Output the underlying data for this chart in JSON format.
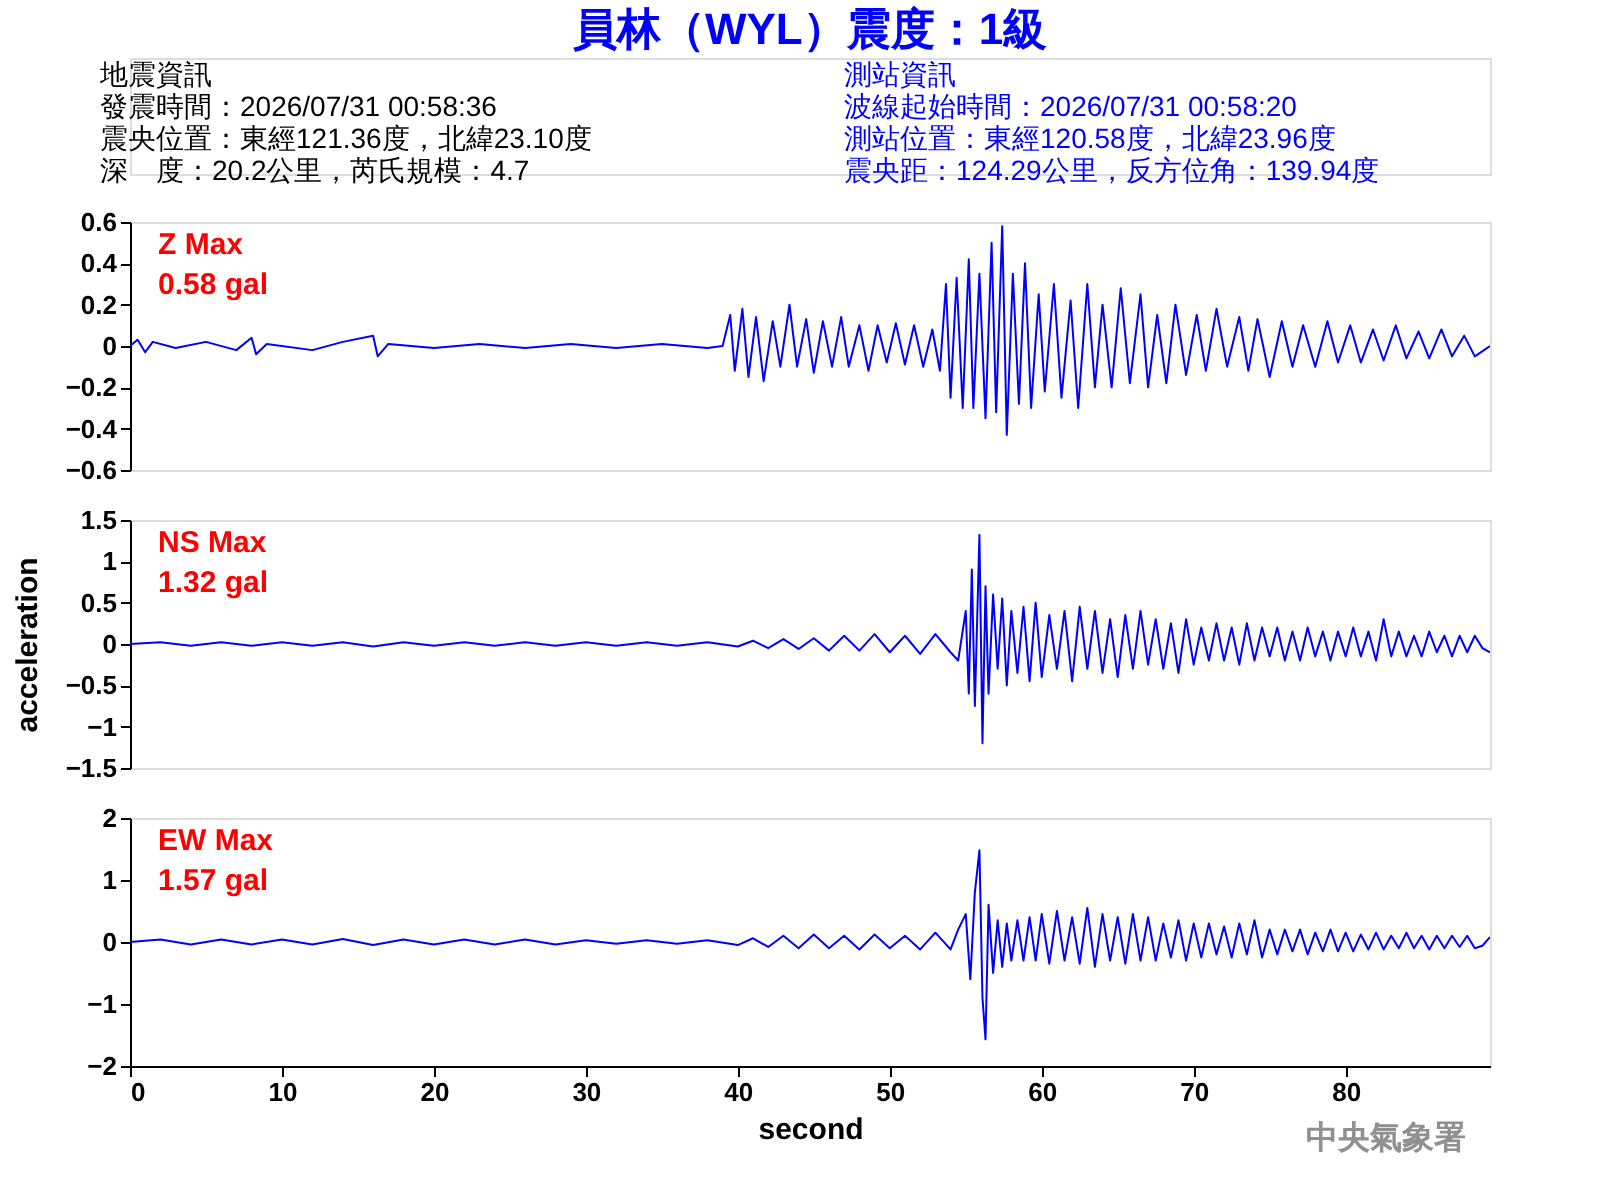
{
  "chart_data": [
    {
      "type": "line",
      "title": "員林（WYL）震度：1級",
      "annotations": [
        "地震資訊",
        "發震時間：2026/07/31 00:58:36",
        "震央位置：東經121.36度，北緯23.10度",
        "深　度：20.2公里，芮氏規模：4.7",
        "測站資訊",
        "波線起始時間：2026/07/31 00:58:20",
        "測站位置：東經120.58度，北緯23.96度",
        "震央距：124.29公里，反方位角：139.94度",
        "Z Max",
        "0.58 gal"
      ],
      "x": [
        0,
        0.5,
        1,
        1.5,
        3,
        5,
        7,
        8,
        8.3,
        9,
        12,
        14,
        16,
        16.3,
        17,
        20,
        23,
        26,
        29,
        32,
        35,
        38,
        39,
        39.5,
        39.8,
        40.3,
        40.7,
        41.2,
        41.7,
        42.3,
        42.8,
        43.4,
        43.9,
        44.5,
        45,
        45.6,
        46.2,
        46.8,
        47.3,
        48,
        48.6,
        49.2,
        49.8,
        50.4,
        51,
        51.6,
        52.2,
        52.8,
        53.3,
        53.7,
        54,
        54.4,
        54.8,
        55.2,
        55.5,
        55.9,
        56.3,
        56.7,
        57,
        57.4,
        57.7,
        58.1,
        58.5,
        58.9,
        59.3,
        59.8,
        60.2,
        60.8,
        61.3,
        61.9,
        62.4,
        63,
        63.5,
        64,
        64.6,
        65.2,
        65.8,
        66.5,
        67,
        67.6,
        68.2,
        68.8,
        69.5,
        70.2,
        70.8,
        71.5,
        72.2,
        73,
        73.6,
        74.2,
        75,
        75.8,
        76.5,
        77.2,
        78,
        78.8,
        79.5,
        80.3,
        81,
        81.8,
        82.5,
        83.3,
        84,
        84.8,
        85.5,
        86.3,
        87,
        87.8,
        88.5,
        89.5
      ],
      "series": [
        {
          "color": "#0000ff",
          "values": [
            0,
            0.03,
            -0.03,
            0.02,
            -0.01,
            0.02,
            -0.02,
            0.04,
            -0.04,
            0.01,
            -0.02,
            0.02,
            0.05,
            -0.05,
            0.01,
            -0.01,
            0.01,
            -0.01,
            0.01,
            -0.01,
            0.01,
            -0.01,
            0,
            0.15,
            -0.12,
            0.18,
            -0.15,
            0.14,
            -0.17,
            0.12,
            -0.1,
            0.2,
            -0.1,
            0.13,
            -0.13,
            0.12,
            -0.1,
            0.14,
            -0.1,
            0.1,
            -0.12,
            0.1,
            -0.08,
            0.11,
            -0.09,
            0.1,
            -0.1,
            0.08,
            -0.12,
            0.3,
            -0.25,
            0.33,
            -0.3,
            0.42,
            -0.3,
            0.35,
            -0.35,
            0.5,
            -0.32,
            0.58,
            -0.43,
            0.35,
            -0.28,
            0.4,
            -0.3,
            0.25,
            -0.22,
            0.3,
            -0.25,
            0.22,
            -0.3,
            0.3,
            -0.2,
            0.2,
            -0.2,
            0.28,
            -0.18,
            0.25,
            -0.2,
            0.15,
            -0.18,
            0.2,
            -0.14,
            0.15,
            -0.12,
            0.18,
            -0.1,
            0.14,
            -0.12,
            0.13,
            -0.15,
            0.12,
            -0.1,
            0.1,
            -0.1,
            0.12,
            -0.08,
            0.1,
            -0.08,
            0.08,
            -0.07,
            0.1,
            -0.06,
            0.07,
            -0.06,
            0.08,
            -0.05,
            0.05,
            -0.05,
            0
          ]
        }
      ],
      "xlim": [
        0,
        89.5
      ],
      "xticks": [
        0,
        10,
        20,
        30,
        40,
        50,
        60,
        70,
        80
      ],
      "ylim": [
        -0.6,
        0.6
      ],
      "yticks": [
        -0.6,
        -0.4,
        -0.2,
        0,
        0.2,
        0.4,
        0.6
      ],
      "tick_labels": "y"
    },
    {
      "type": "line",
      "ylabel": "acceleration",
      "annotations": [
        "NS Max",
        "1.32 gal"
      ],
      "x": [
        0,
        2,
        4,
        6,
        8,
        10,
        12,
        14,
        16,
        18,
        20,
        22,
        24,
        26,
        28,
        30,
        32,
        34,
        36,
        38,
        40,
        41,
        42,
        43,
        44,
        45,
        46,
        47,
        48,
        49,
        50,
        51,
        52,
        53,
        54,
        54.5,
        55,
        55.2,
        55.4,
        55.6,
        55.9,
        56.1,
        56.3,
        56.5,
        56.8,
        57.1,
        57.4,
        57.7,
        58,
        58.4,
        58.8,
        59.2,
        59.6,
        60,
        60.5,
        61,
        61.5,
        62,
        62.5,
        63,
        63.5,
        64,
        64.5,
        65,
        65.5,
        66,
        66.5,
        67,
        67.5,
        68,
        68.5,
        69,
        69.5,
        70,
        70.5,
        71,
        71.5,
        72,
        72.5,
        73,
        73.5,
        74,
        74.5,
        75,
        75.5,
        76,
        76.5,
        77,
        77.5,
        78,
        78.5,
        79,
        79.5,
        80,
        80.5,
        81,
        81.5,
        82,
        82.5,
        83,
        83.5,
        84,
        84.5,
        85,
        85.5,
        86,
        86.5,
        87,
        87.5,
        88,
        88.5,
        89,
        89.5
      ],
      "series": [
        {
          "color": "#0000ff",
          "values": [
            0,
            0.02,
            -0.02,
            0.02,
            -0.02,
            0.02,
            -0.02,
            0.02,
            -0.03,
            0.02,
            -0.02,
            0.02,
            -0.02,
            0.02,
            -0.02,
            0.02,
            -0.02,
            0.02,
            -0.02,
            0.02,
            -0.03,
            0.04,
            -0.05,
            0.06,
            -0.06,
            0.07,
            -0.08,
            0.1,
            -0.08,
            0.12,
            -0.1,
            0.1,
            -0.12,
            0.12,
            -0.1,
            -0.2,
            0.4,
            -0.6,
            0.9,
            -0.75,
            1.32,
            -1.2,
            0.7,
            -0.6,
            0.6,
            -0.3,
            0.55,
            -0.5,
            0.4,
            -0.35,
            0.45,
            -0.45,
            0.5,
            -0.4,
            0.35,
            -0.3,
            0.4,
            -0.45,
            0.45,
            -0.3,
            0.4,
            -0.35,
            0.3,
            -0.4,
            0.35,
            -0.3,
            0.4,
            -0.25,
            0.3,
            -0.3,
            0.25,
            -0.35,
            0.3,
            -0.25,
            0.2,
            -0.2,
            0.25,
            -0.2,
            0.2,
            -0.25,
            0.25,
            -0.2,
            0.2,
            -0.15,
            0.2,
            -0.2,
            0.15,
            -0.2,
            0.2,
            -0.15,
            0.15,
            -0.2,
            0.15,
            -0.15,
            0.2,
            -0.15,
            0.15,
            -0.2,
            0.3,
            -0.15,
            0.15,
            -0.15,
            0.1,
            -0.15,
            0.15,
            -0.1,
            0.1,
            -0.15,
            0.1,
            -0.1,
            0.1,
            -0.05,
            -0.1
          ]
        }
      ],
      "xlim": [
        0,
        89.5
      ],
      "xticks": [
        0,
        10,
        20,
        30,
        40,
        50,
        60,
        70,
        80
      ],
      "ylim": [
        -1.5,
        1.5
      ],
      "yticks": [
        -1.5,
        -1,
        -0.5,
        0,
        0.5,
        1,
        1.5
      ],
      "tick_labels": "y"
    },
    {
      "type": "line",
      "xlabel": "second",
      "annotations": [
        "EW Max",
        "1.57 gal",
        "中央氣象署"
      ],
      "x": [
        0,
        2,
        4,
        6,
        8,
        10,
        12,
        14,
        16,
        18,
        20,
        22,
        24,
        26,
        28,
        30,
        32,
        34,
        36,
        38,
        40,
        41,
        42,
        43,
        44,
        45,
        46,
        47,
        48,
        49,
        50,
        51,
        52,
        53,
        54,
        54.5,
        55,
        55.3,
        55.6,
        55.9,
        56.1,
        56.3,
        56.5,
        56.8,
        57.1,
        57.4,
        57.7,
        58,
        58.4,
        58.8,
        59.2,
        59.6,
        60,
        60.5,
        61,
        61.5,
        62,
        62.5,
        63,
        63.5,
        64,
        64.5,
        65,
        65.5,
        66,
        66.5,
        67,
        67.5,
        68,
        68.5,
        69,
        69.5,
        70,
        70.5,
        71,
        71.5,
        72,
        72.5,
        73,
        73.5,
        74,
        74.5,
        75,
        75.5,
        76,
        76.5,
        77,
        77.5,
        78,
        78.5,
        79,
        79.5,
        80,
        80.5,
        81,
        81.5,
        82,
        82.5,
        83,
        83.5,
        84,
        84.5,
        85,
        85.5,
        86,
        86.5,
        87,
        87.5,
        88,
        88.5,
        89,
        89.5
      ],
      "series": [
        {
          "color": "#0000ff",
          "values": [
            0,
            0.04,
            -0.04,
            0.04,
            -0.04,
            0.04,
            -0.04,
            0.05,
            -0.05,
            0.04,
            -0.04,
            0.04,
            -0.04,
            0.04,
            -0.04,
            0.03,
            -0.03,
            0.03,
            -0.03,
            0.03,
            -0.05,
            0.06,
            -0.08,
            0.1,
            -0.1,
            0.12,
            -0.1,
            0.1,
            -0.12,
            0.12,
            -0.1,
            0.1,
            -0.12,
            0.15,
            -0.12,
            0.2,
            0.45,
            -0.6,
            0.8,
            1.48,
            -0.9,
            -1.57,
            0.6,
            -0.5,
            0.35,
            -0.4,
            0.3,
            -0.3,
            0.35,
            -0.3,
            0.4,
            -0.3,
            0.45,
            -0.35,
            0.5,
            -0.3,
            0.4,
            -0.35,
            0.55,
            -0.4,
            0.45,
            -0.3,
            0.4,
            -0.35,
            0.45,
            -0.3,
            0.4,
            -0.3,
            0.3,
            -0.25,
            0.35,
            -0.3,
            0.3,
            -0.25,
            0.3,
            -0.2,
            0.25,
            -0.25,
            0.3,
            -0.2,
            0.35,
            -0.25,
            0.2,
            -0.2,
            0.2,
            -0.15,
            0.2,
            -0.2,
            0.15,
            -0.15,
            0.2,
            -0.15,
            0.15,
            -0.15,
            0.12,
            -0.12,
            0.15,
            -0.12,
            0.1,
            -0.1,
            0.15,
            -0.1,
            0.1,
            -0.12,
            0.1,
            -0.1,
            0.1,
            -0.08,
            0.1,
            -0.1,
            -0.06,
            0.08
          ]
        }
      ],
      "xlim": [
        0,
        89.5
      ],
      "xticks": [
        0,
        10,
        20,
        30,
        40,
        50,
        60,
        70,
        80
      ],
      "ylim": [
        -2,
        2
      ],
      "yticks": [
        -2,
        -1,
        0,
        1,
        2
      ]
    }
  ]
}
